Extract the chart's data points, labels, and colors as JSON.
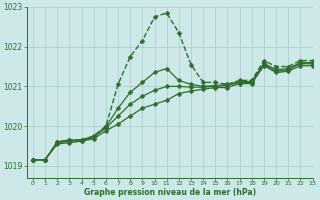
{
  "title": "Graphe pression niveau de la mer (hPa)",
  "bg_color": "#cce8e8",
  "grid_color": "#aacccc",
  "line_color": "#2d6e2d",
  "xlim": [
    -0.5,
    23
  ],
  "ylim": [
    1018.7,
    1023.0
  ],
  "yticks": [
    1019,
    1020,
    1021,
    1022,
    1023
  ],
  "xticks": [
    0,
    1,
    2,
    3,
    4,
    5,
    6,
    7,
    8,
    9,
    10,
    11,
    12,
    13,
    14,
    15,
    16,
    17,
    18,
    19,
    20,
    21,
    22,
    23
  ],
  "series": [
    [
      1019.15,
      1019.15,
      1019.6,
      1019.65,
      1019.65,
      1019.75,
      1020.0,
      1021.05,
      1021.75,
      1022.15,
      1022.75,
      1022.85,
      1022.35,
      1021.55,
      1021.1,
      1021.1,
      1021.05,
      1021.15,
      1021.15,
      1021.65,
      1021.5,
      1021.5,
      1021.65,
      1021.65
    ],
    [
      1019.15,
      1019.15,
      1019.6,
      1019.65,
      1019.65,
      1019.75,
      1019.98,
      1020.45,
      1020.85,
      1021.1,
      1021.35,
      1021.45,
      1021.15,
      1021.05,
      1021.0,
      1021.02,
      1021.05,
      1021.12,
      1021.12,
      1021.58,
      1021.42,
      1021.45,
      1021.6,
      1021.6
    ],
    [
      1019.15,
      1019.15,
      1019.58,
      1019.62,
      1019.63,
      1019.72,
      1019.95,
      1020.25,
      1020.55,
      1020.75,
      1020.9,
      1021.0,
      1021.0,
      1020.98,
      1020.98,
      1021.0,
      1021.02,
      1021.1,
      1021.1,
      1021.55,
      1021.38,
      1021.42,
      1021.57,
      1021.57
    ],
    [
      1019.15,
      1019.15,
      1019.55,
      1019.58,
      1019.62,
      1019.68,
      1019.88,
      1020.05,
      1020.25,
      1020.45,
      1020.55,
      1020.65,
      1020.82,
      1020.88,
      1020.93,
      1020.97,
      1020.97,
      1021.07,
      1021.07,
      1021.52,
      1021.35,
      1021.38,
      1021.52,
      1021.52
    ]
  ]
}
